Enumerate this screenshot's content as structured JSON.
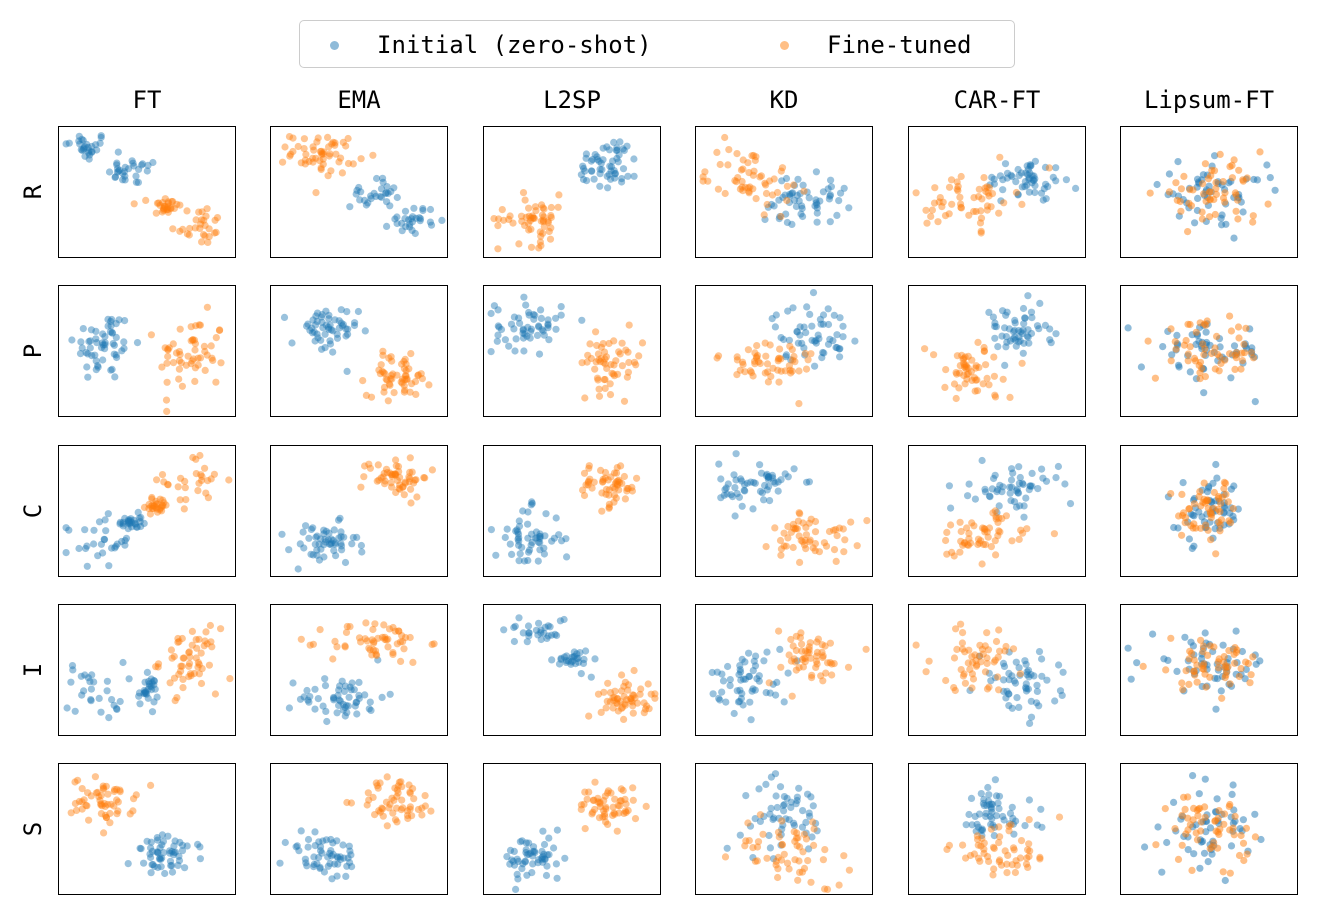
{
  "legend": {
    "items": [
      {
        "label": "Initial (zero-shot)",
        "color": "#1f77b4"
      },
      {
        "label": "Fine-tuned",
        "color": "#ff7f0e"
      }
    ],
    "placement": "top-center"
  },
  "chart_data": {
    "type": "scatter",
    "subtype": "grid-of-2d-embedding-scatter-plots",
    "columns": [
      "FT",
      "EMA",
      "L2SP",
      "KD",
      "CAR-FT",
      "Lipsum-FT"
    ],
    "rows": [
      "R",
      "P",
      "C",
      "I",
      "S"
    ],
    "axes": {
      "ticks": "none",
      "grid": false,
      "xlim": [
        0,
        1
      ],
      "ylim": [
        0,
        1
      ]
    },
    "marker_alpha": 0.45,
    "series": [
      {
        "name": "Initial (zero-shot)",
        "color": "#1f77b4"
      },
      {
        "name": "Fine-tuned",
        "color": "#ff7f0e"
      }
    ],
    "panels": {
      "FT": {
        "R": {
          "zero_shot": [
            [
              0.15,
              0.85,
              0.12,
              0.1
            ],
            [
              0.42,
              0.66,
              0.13,
              0.09
            ]
          ],
          "fine_tuned": [
            [
              0.78,
              0.26,
              0.14,
              0.14
            ],
            [
              0.6,
              0.4,
              0.08,
              0.07
            ]
          ]
        },
        "P": {
          "zero_shot": [
            [
              0.25,
              0.55,
              0.15,
              0.25
            ]
          ],
          "fine_tuned": [
            [
              0.75,
              0.48,
              0.17,
              0.27
            ]
          ]
        },
        "C": {
          "zero_shot": [
            [
              0.22,
              0.27,
              0.17,
              0.17
            ],
            [
              0.4,
              0.42,
              0.06,
              0.06
            ]
          ],
          "fine_tuned": [
            [
              0.77,
              0.74,
              0.16,
              0.17
            ],
            [
              0.55,
              0.55,
              0.06,
              0.06
            ]
          ]
        },
        "I": {
          "zero_shot": [
            [
              0.2,
              0.35,
              0.15,
              0.2
            ],
            [
              0.5,
              0.35,
              0.05,
              0.1
            ]
          ],
          "fine_tuned": [
            [
              0.73,
              0.58,
              0.15,
              0.22
            ]
          ]
        },
        "S": {
          "zero_shot": [
            [
              0.62,
              0.3,
              0.18,
              0.14
            ]
          ],
          "fine_tuned": [
            [
              0.25,
              0.72,
              0.16,
              0.16
            ]
          ]
        }
      },
      "EMA": {
        "R": {
          "zero_shot": [
            [
              0.58,
              0.5,
              0.12,
              0.1
            ],
            [
              0.8,
              0.3,
              0.12,
              0.1
            ]
          ],
          "fine_tuned": [
            [
              0.3,
              0.8,
              0.17,
              0.14
            ]
          ]
        },
        "P": {
          "zero_shot": [
            [
              0.3,
              0.65,
              0.17,
              0.18
            ]
          ],
          "fine_tuned": [
            [
              0.72,
              0.32,
              0.16,
              0.14
            ]
          ]
        },
        "C": {
          "zero_shot": [
            [
              0.3,
              0.25,
              0.17,
              0.15
            ]
          ],
          "fine_tuned": [
            [
              0.7,
              0.77,
              0.17,
              0.14
            ]
          ]
        },
        "I": {
          "zero_shot": [
            [
              0.4,
              0.3,
              0.22,
              0.15
            ]
          ],
          "fine_tuned": [
            [
              0.6,
              0.72,
              0.25,
              0.15
            ]
          ]
        },
        "S": {
          "zero_shot": [
            [
              0.3,
              0.3,
              0.2,
              0.17
            ]
          ],
          "fine_tuned": [
            [
              0.72,
              0.72,
              0.2,
              0.16
            ]
          ]
        }
      },
      "L2SP": {
        "R": {
          "zero_shot": [
            [
              0.7,
              0.73,
              0.16,
              0.17
            ]
          ],
          "fine_tuned": [
            [
              0.28,
              0.3,
              0.18,
              0.17
            ]
          ]
        },
        "P": {
          "zero_shot": [
            [
              0.25,
              0.7,
              0.17,
              0.17
            ]
          ],
          "fine_tuned": [
            [
              0.72,
              0.42,
              0.16,
              0.2
            ]
          ]
        },
        "C": {
          "zero_shot": [
            [
              0.25,
              0.3,
              0.17,
              0.2
            ]
          ],
          "fine_tuned": [
            [
              0.7,
              0.7,
              0.16,
              0.15
            ]
          ]
        },
        "I": {
          "zero_shot": [
            [
              0.3,
              0.82,
              0.17,
              0.1
            ],
            [
              0.5,
              0.58,
              0.09,
              0.08
            ]
          ],
          "fine_tuned": [
            [
              0.8,
              0.3,
              0.13,
              0.14
            ]
          ]
        },
        "S": {
          "zero_shot": [
            [
              0.28,
              0.28,
              0.16,
              0.16
            ]
          ],
          "fine_tuned": [
            [
              0.7,
              0.68,
              0.15,
              0.14
            ]
          ]
        }
      },
      "KD": {
        "R": {
          "zero_shot": [
            [
              0.6,
              0.45,
              0.22,
              0.16
            ]
          ],
          "fine_tuned": [
            [
              0.3,
              0.62,
              0.22,
              0.22
            ]
          ]
        },
        "P": {
          "zero_shot": [
            [
              0.65,
              0.65,
              0.2,
              0.2
            ]
          ],
          "fine_tuned": [
            [
              0.4,
              0.4,
              0.25,
              0.2
            ]
          ]
        },
        "C": {
          "zero_shot": [
            [
              0.35,
              0.7,
              0.2,
              0.16
            ]
          ],
          "fine_tuned": [
            [
              0.65,
              0.32,
              0.2,
              0.18
            ]
          ]
        },
        "I": {
          "zero_shot": [
            [
              0.3,
              0.45,
              0.2,
              0.2
            ]
          ],
          "fine_tuned": [
            [
              0.62,
              0.6,
              0.22,
              0.2
            ]
          ]
        },
        "S": {
          "zero_shot": [
            [
              0.5,
              0.6,
              0.22,
              0.25
            ]
          ],
          "fine_tuned": [
            [
              0.55,
              0.35,
              0.3,
              0.25
            ]
          ]
        }
      },
      "CAR-FT": {
        "R": {
          "zero_shot": [
            [
              0.65,
              0.6,
              0.2,
              0.14
            ]
          ],
          "fine_tuned": [
            [
              0.35,
              0.45,
              0.22,
              0.2
            ]
          ]
        },
        "P": {
          "zero_shot": [
            [
              0.6,
              0.65,
              0.18,
              0.18
            ]
          ],
          "fine_tuned": [
            [
              0.35,
              0.35,
              0.22,
              0.2
            ]
          ]
        },
        "C": {
          "zero_shot": [
            [
              0.6,
              0.68,
              0.22,
              0.16
            ]
          ],
          "fine_tuned": [
            [
              0.4,
              0.32,
              0.25,
              0.16
            ]
          ]
        },
        "I": {
          "zero_shot": [
            [
              0.62,
              0.4,
              0.2,
              0.22
            ]
          ],
          "fine_tuned": [
            [
              0.4,
              0.6,
              0.25,
              0.22
            ]
          ]
        },
        "S": {
          "zero_shot": [
            [
              0.45,
              0.6,
              0.22,
              0.2
            ]
          ],
          "fine_tuned": [
            [
              0.55,
              0.35,
              0.28,
              0.2
            ]
          ]
        }
      },
      "Lipsum-FT": {
        "R": {
          "overlapping": true,
          "zero_shot": [
            [
              0.5,
              0.5,
              0.28,
              0.2
            ]
          ],
          "fine_tuned": [
            [
              0.5,
              0.5,
              0.28,
              0.2
            ]
          ]
        },
        "P": {
          "overlapping": true,
          "zero_shot": [
            [
              0.5,
              0.5,
              0.28,
              0.2
            ]
          ],
          "fine_tuned": [
            [
              0.5,
              0.5,
              0.28,
              0.2
            ]
          ]
        },
        "C": {
          "overlapping": true,
          "zero_shot": [
            [
              0.5,
              0.5,
              0.16,
              0.22
            ]
          ],
          "fine_tuned": [
            [
              0.5,
              0.5,
              0.16,
              0.22
            ]
          ]
        },
        "I": {
          "overlapping": true,
          "zero_shot": [
            [
              0.5,
              0.55,
              0.3,
              0.18
            ]
          ],
          "fine_tuned": [
            [
              0.5,
              0.55,
              0.3,
              0.18
            ]
          ]
        },
        "S": {
          "overlapping": true,
          "zero_shot": [
            [
              0.5,
              0.5,
              0.2,
              0.25
            ]
          ],
          "fine_tuned": [
            [
              0.5,
              0.5,
              0.2,
              0.25
            ]
          ]
        }
      }
    },
    "cluster_format": "each cluster is [center_x, center_y, spread_x, spread_y] in normalized axis units; ~50 points per series per panel"
  }
}
